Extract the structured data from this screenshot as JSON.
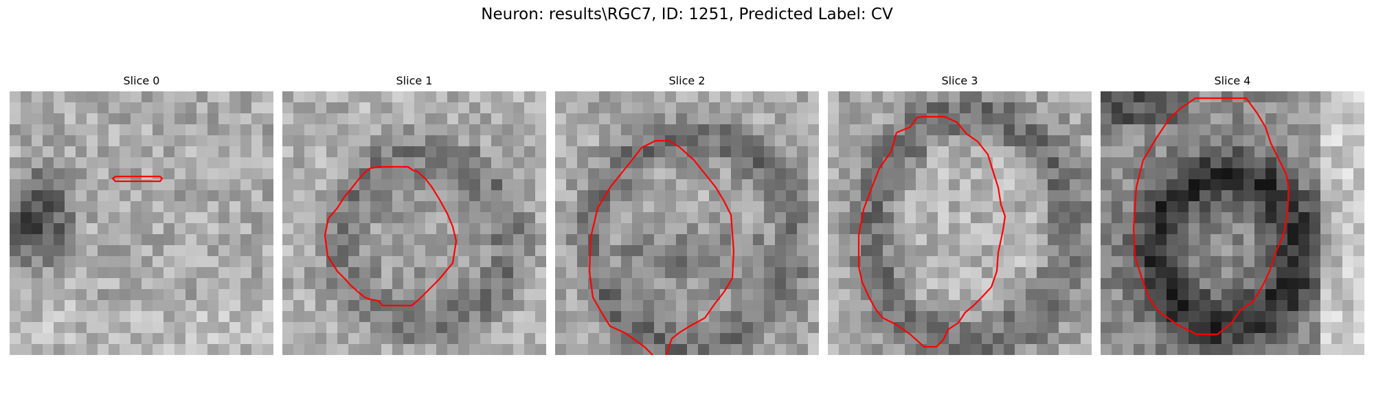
{
  "figure": {
    "title": "Neuron: results\\RGC7, ID: 1251, Predicted Label: CV",
    "contour_color": "#ff0000",
    "colormap": "grayscale",
    "panels": [
      {
        "label": "Slice 0"
      },
      {
        "label": "Slice 1"
      },
      {
        "label": "Slice 2"
      },
      {
        "label": "Slice 3"
      },
      {
        "label": "Slice 4"
      }
    ]
  }
}
